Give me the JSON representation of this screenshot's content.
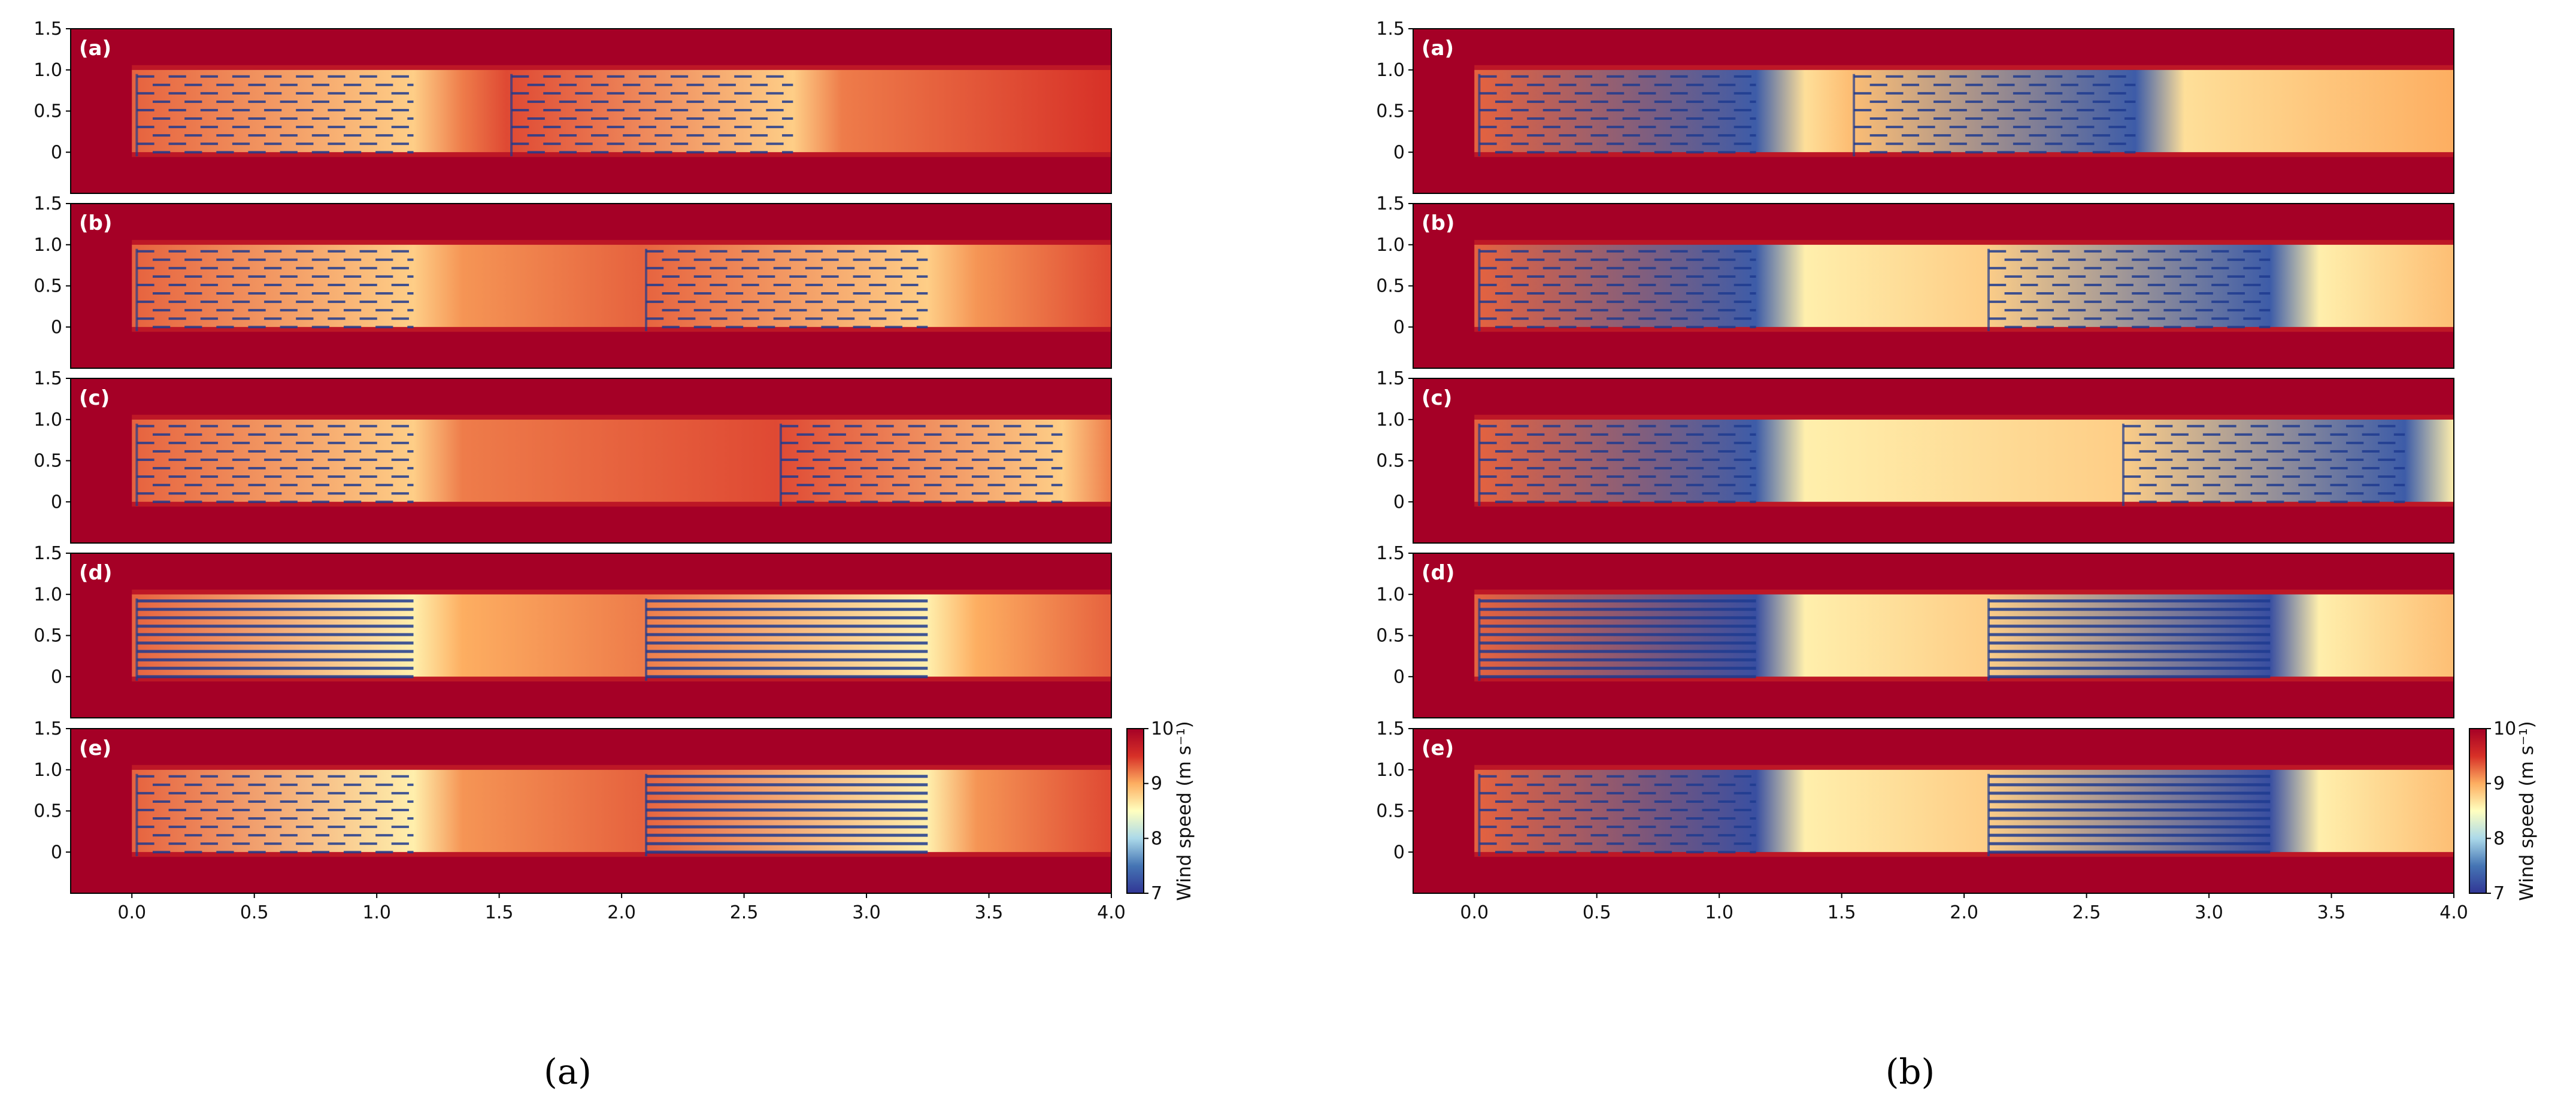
{
  "figure": {
    "captions": [
      "(a)",
      "(b)"
    ],
    "colorbar": {
      "label": "Wind speed (m s⁻¹)",
      "ticks": [
        "7",
        "8",
        "9",
        "10"
      ],
      "stops": [
        "#313695",
        "#4575b4",
        "#abd9e9",
        "#ffffbf",
        "#fdae61",
        "#d73027",
        "#a50026"
      ]
    },
    "colors": {
      "background": "#a50026",
      "turbine": "#1f3b8f"
    }
  },
  "chart_data": [
    {
      "type": "heatmap",
      "title": "(a)",
      "variable": "Wind speed",
      "units": "m s⁻¹",
      "color_range": [
        7,
        10
      ],
      "xlim": [
        -0.25,
        4.0
      ],
      "ylim": [
        -0.5,
        1.5
      ],
      "x_ticks": [
        "0.0",
        "0.5",
        "1.0",
        "1.5",
        "2.0",
        "2.5",
        "3.0",
        "3.5",
        "4.0"
      ],
      "y_ticks": [
        "1.5",
        "1.0",
        "0.5",
        "0"
      ],
      "ambient_speed": 10,
      "panels": [
        {
          "tag": "(a)",
          "farm2_x": 1.55,
          "recovery_speed": 9.4,
          "wake_speed": 8.8,
          "staggered": [
            true,
            true
          ]
        },
        {
          "tag": "(b)",
          "farm2_x": 2.1,
          "recovery_speed": 9.3,
          "wake_speed": 8.8,
          "staggered": [
            true,
            true
          ]
        },
        {
          "tag": "(c)",
          "farm2_x": 2.65,
          "recovery_speed": 9.4,
          "wake_speed": 8.8,
          "staggered": [
            true,
            true
          ]
        },
        {
          "tag": "(d)",
          "farm2_x": 2.1,
          "recovery_speed": 9.2,
          "wake_speed": 8.6,
          "staggered": [
            false,
            false
          ]
        },
        {
          "tag": "(e)",
          "farm2_x": 2.1,
          "recovery_speed": 9.3,
          "wake_speed": 8.6,
          "staggered": [
            true,
            false
          ]
        }
      ]
    },
    {
      "type": "heatmap",
      "title": "(b)",
      "variable": "Wind speed",
      "units": "m s⁻¹",
      "color_range": [
        7,
        10
      ],
      "xlim": [
        -0.25,
        4.0
      ],
      "ylim": [
        -0.5,
        1.5
      ],
      "x_ticks": [
        "0.0",
        "0.5",
        "1.0",
        "1.5",
        "2.0",
        "2.5",
        "3.0",
        "3.5",
        "4.0"
      ],
      "y_ticks": [
        "1.5",
        "1.0",
        "0.5",
        "0"
      ],
      "ambient_speed": 10,
      "panels": [
        {
          "tag": "(a)",
          "farm2_x": 1.55,
          "recovery_speed": 8.9,
          "wake_speed": 7.3,
          "staggered": [
            true,
            true
          ]
        },
        {
          "tag": "(b)",
          "farm2_x": 2.1,
          "recovery_speed": 8.8,
          "wake_speed": 7.3,
          "staggered": [
            true,
            true
          ]
        },
        {
          "tag": "(c)",
          "farm2_x": 2.65,
          "recovery_speed": 8.8,
          "wake_speed": 7.3,
          "staggered": [
            true,
            true
          ]
        },
        {
          "tag": "(d)",
          "farm2_x": 2.1,
          "recovery_speed": 8.8,
          "wake_speed": 7.2,
          "staggered": [
            false,
            false
          ]
        },
        {
          "tag": "(e)",
          "farm2_x": 2.1,
          "recovery_speed": 8.8,
          "wake_speed": 7.2,
          "staggered": [
            true,
            false
          ]
        }
      ]
    }
  ]
}
